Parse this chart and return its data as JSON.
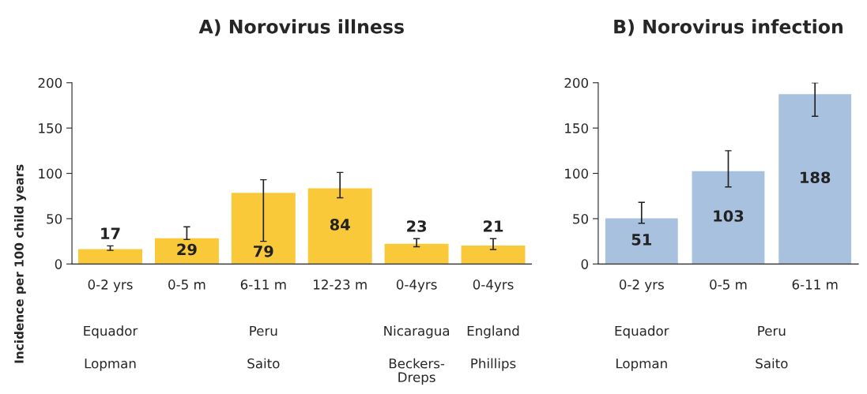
{
  "chart_data": [
    {
      "type": "bar",
      "title": "A) Norovirus illness",
      "ylabel": "Incidence per 100 child years",
      "categories": [
        "0-2 yrs",
        "0-5 m",
        "6-11 m",
        "12-23 m",
        "0-4yrs",
        "0-4yrs"
      ],
      "series": [
        {
          "color": "#f9c93a",
          "values": [
            17,
            29,
            79,
            84,
            23,
            21
          ],
          "errors": [
            [
              15,
              20
            ],
            [
              27,
              41
            ],
            [
              25,
              93
            ],
            [
              73,
              101
            ],
            [
              19,
              28
            ],
            [
              16,
              28
            ]
          ]
        }
      ],
      "ylim": [
        0,
        200
      ],
      "yticks": [
        0,
        50,
        100,
        150,
        200
      ],
      "grid": false,
      "data_labels": true,
      "annotations": [
        "Equador",
        "Peru",
        "Nicaragua",
        "England",
        "Lopman",
        "Saito",
        "Beckers-\nDreps",
        "Phillips"
      ]
    },
    {
      "type": "bar",
      "title": "B) Norovirus infection",
      "categories": [
        "0-2 yrs",
        "0-5 m",
        "6-11 m"
      ],
      "series": [
        {
          "color": "#a8c1df",
          "values": [
            51,
            103,
            188
          ],
          "errors": [
            [
              45,
              68
            ],
            [
              85,
              125
            ],
            [
              163,
              200
            ]
          ]
        }
      ],
      "ylim": [
        0,
        200
      ],
      "yticks": [
        0,
        50,
        100,
        150,
        200
      ],
      "grid": false,
      "data_labels": true,
      "annotations": [
        "Equador",
        "Peru",
        "Lopman",
        "Saito"
      ]
    }
  ]
}
